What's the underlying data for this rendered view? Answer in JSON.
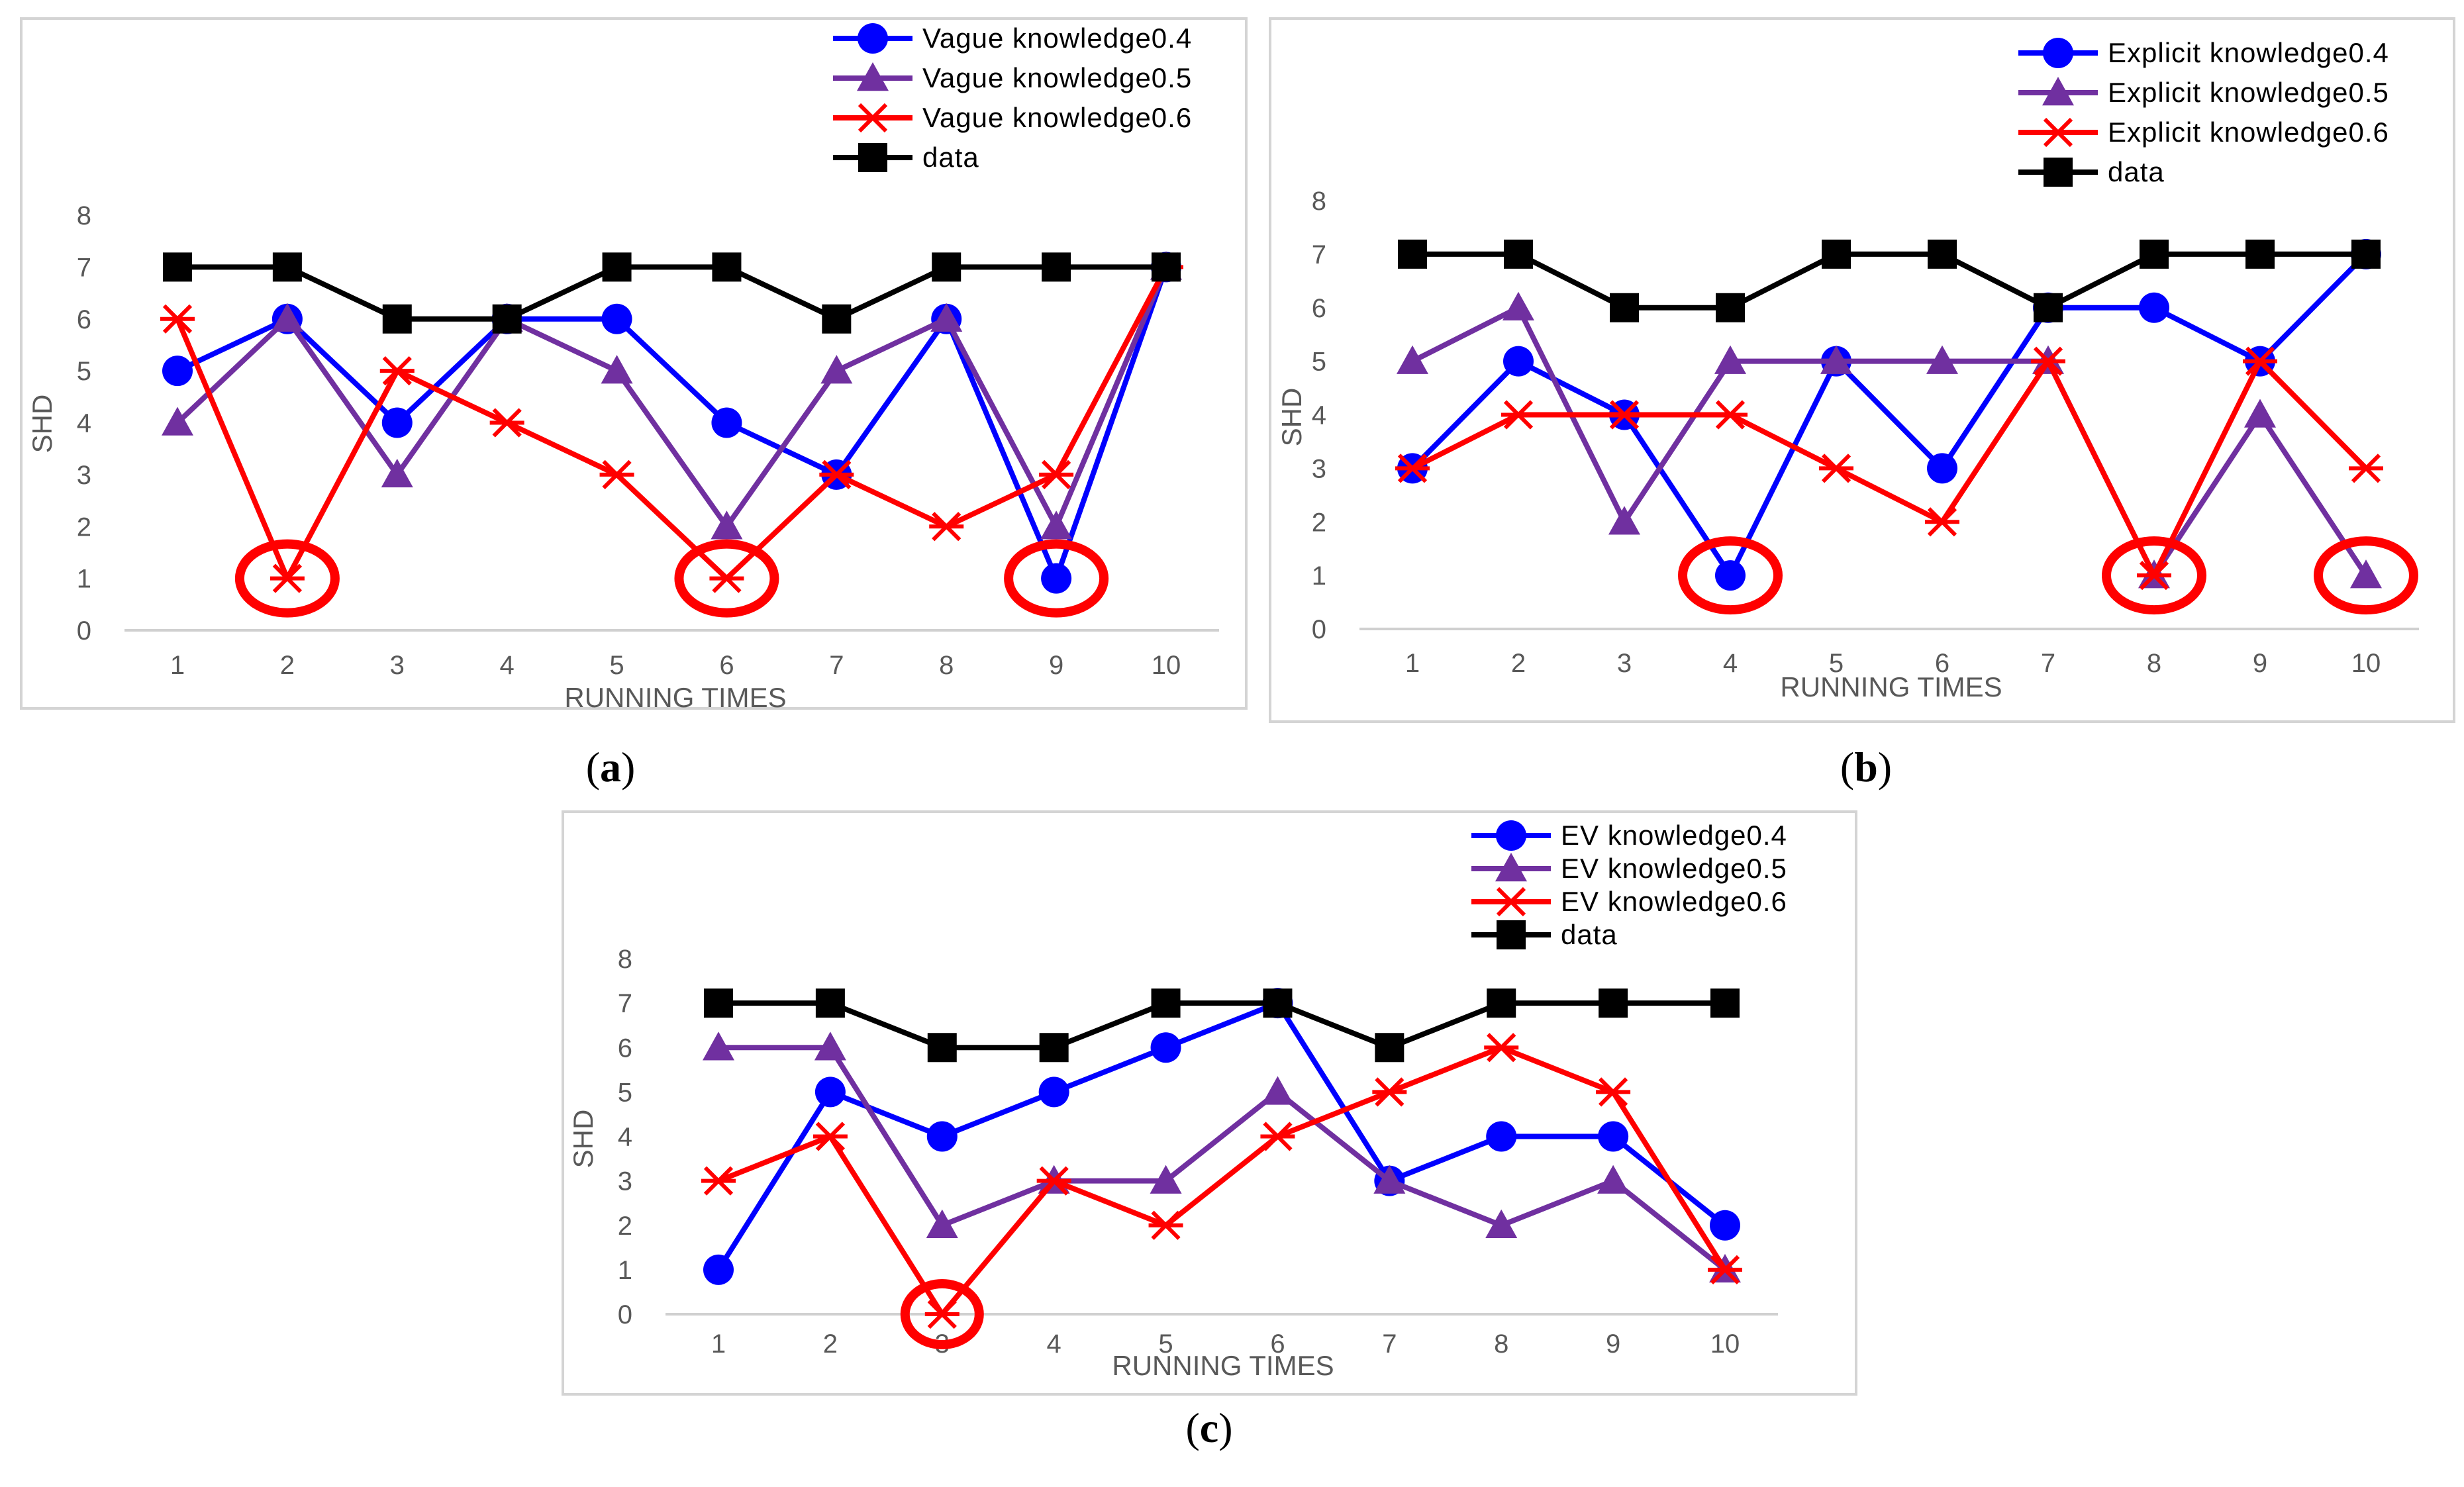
{
  "colors": {
    "s04": "#0000ff",
    "s05": "#7030a0",
    "s06": "#ff0000",
    "data": "#000000",
    "highlight": "#ff0000"
  },
  "chart_data": [
    {
      "type": "line",
      "panel": "a",
      "caption": "a",
      "xlabel": "RUNNING TIMES",
      "ylabel": "SHD",
      "categories": [
        "1",
        "2",
        "3",
        "4",
        "5",
        "6",
        "7",
        "8",
        "9",
        "10"
      ],
      "ylim": [
        0,
        8
      ],
      "yticks": [
        "0",
        "1",
        "2",
        "3",
        "4",
        "5",
        "6",
        "7",
        "8"
      ],
      "legend_position": "top-right",
      "series": [
        {
          "name": "Vague knowledge0.4",
          "marker": "circle",
          "color_key": "s04",
          "values": [
            5,
            6,
            4,
            6,
            6,
            4,
            3,
            6,
            1,
            7
          ]
        },
        {
          "name": "Vague knowledge0.5",
          "marker": "triangle",
          "color_key": "s05",
          "values": [
            4,
            6,
            3,
            6,
            5,
            2,
            5,
            6,
            2,
            7
          ]
        },
        {
          "name": "Vague knowledge0.6",
          "marker": "star",
          "color_key": "s06",
          "values": [
            6,
            1,
            5,
            4,
            3,
            1,
            3,
            2,
            3,
            7
          ]
        },
        {
          "name": "data",
          "marker": "square",
          "color_key": "data",
          "values": [
            7,
            7,
            6,
            6,
            7,
            7,
            6,
            7,
            7,
            7
          ]
        }
      ],
      "highlights": [
        {
          "x": 2,
          "y": 1
        },
        {
          "x": 6,
          "y": 1
        },
        {
          "x": 9,
          "y": 1
        }
      ]
    },
    {
      "type": "line",
      "panel": "b",
      "caption": "b",
      "xlabel": "RUNNING TIMES",
      "ylabel": "SHD",
      "categories": [
        "1",
        "2",
        "3",
        "4",
        "5",
        "6",
        "7",
        "8",
        "9",
        "10"
      ],
      "ylim": [
        0,
        8
      ],
      "yticks": [
        "0",
        "1",
        "2",
        "3",
        "4",
        "5",
        "6",
        "7",
        "8"
      ],
      "legend_position": "top-right",
      "series": [
        {
          "name": "Explicit knowledge0.4",
          "marker": "circle",
          "color_key": "s04",
          "values": [
            3,
            5,
            4,
            1,
            5,
            3,
            6,
            6,
            5,
            7
          ]
        },
        {
          "name": "Explicit knowledge0.5",
          "marker": "triangle",
          "color_key": "s05",
          "values": [
            5,
            6,
            2,
            5,
            5,
            5,
            5,
            1,
            4,
            1
          ]
        },
        {
          "name": "Explicit knowledge0.6",
          "marker": "star",
          "color_key": "s06",
          "values": [
            3,
            4,
            4,
            4,
            3,
            2,
            5,
            1,
            5,
            3
          ]
        },
        {
          "name": "data",
          "marker": "square",
          "color_key": "data",
          "values": [
            7,
            7,
            6,
            6,
            7,
            7,
            6,
            7,
            7,
            7
          ]
        }
      ],
      "highlights": [
        {
          "x": 4,
          "y": 1
        },
        {
          "x": 8,
          "y": 1
        },
        {
          "x": 10,
          "y": 1
        }
      ]
    },
    {
      "type": "line",
      "panel": "c",
      "caption": "c",
      "xlabel": "RUNNING TIMES",
      "ylabel": "SHD",
      "categories": [
        "1",
        "2",
        "3",
        "4",
        "5",
        "6",
        "7",
        "8",
        "9",
        "10"
      ],
      "ylim": [
        0,
        8
      ],
      "yticks": [
        "0",
        "1",
        "2",
        "3",
        "4",
        "5",
        "6",
        "7",
        "8"
      ],
      "legend_position": "top-right",
      "series": [
        {
          "name": "EV knowledge0.4",
          "marker": "circle",
          "color_key": "s04",
          "values": [
            1,
            5,
            4,
            5,
            6,
            7,
            3,
            4,
            4,
            2
          ]
        },
        {
          "name": "EV knowledge0.5",
          "marker": "triangle",
          "color_key": "s05",
          "values": [
            6,
            6,
            2,
            3,
            3,
            5,
            3,
            2,
            3,
            1
          ]
        },
        {
          "name": "EV knowledge0.6",
          "marker": "star",
          "color_key": "s06",
          "values": [
            3,
            4,
            0,
            3,
            2,
            4,
            5,
            6,
            5,
            1
          ]
        },
        {
          "name": "data",
          "marker": "square",
          "color_key": "data",
          "values": [
            7,
            7,
            6,
            6,
            7,
            7,
            6,
            7,
            7,
            7
          ]
        }
      ],
      "highlights": [
        {
          "x": 3,
          "y": 0
        }
      ]
    }
  ]
}
